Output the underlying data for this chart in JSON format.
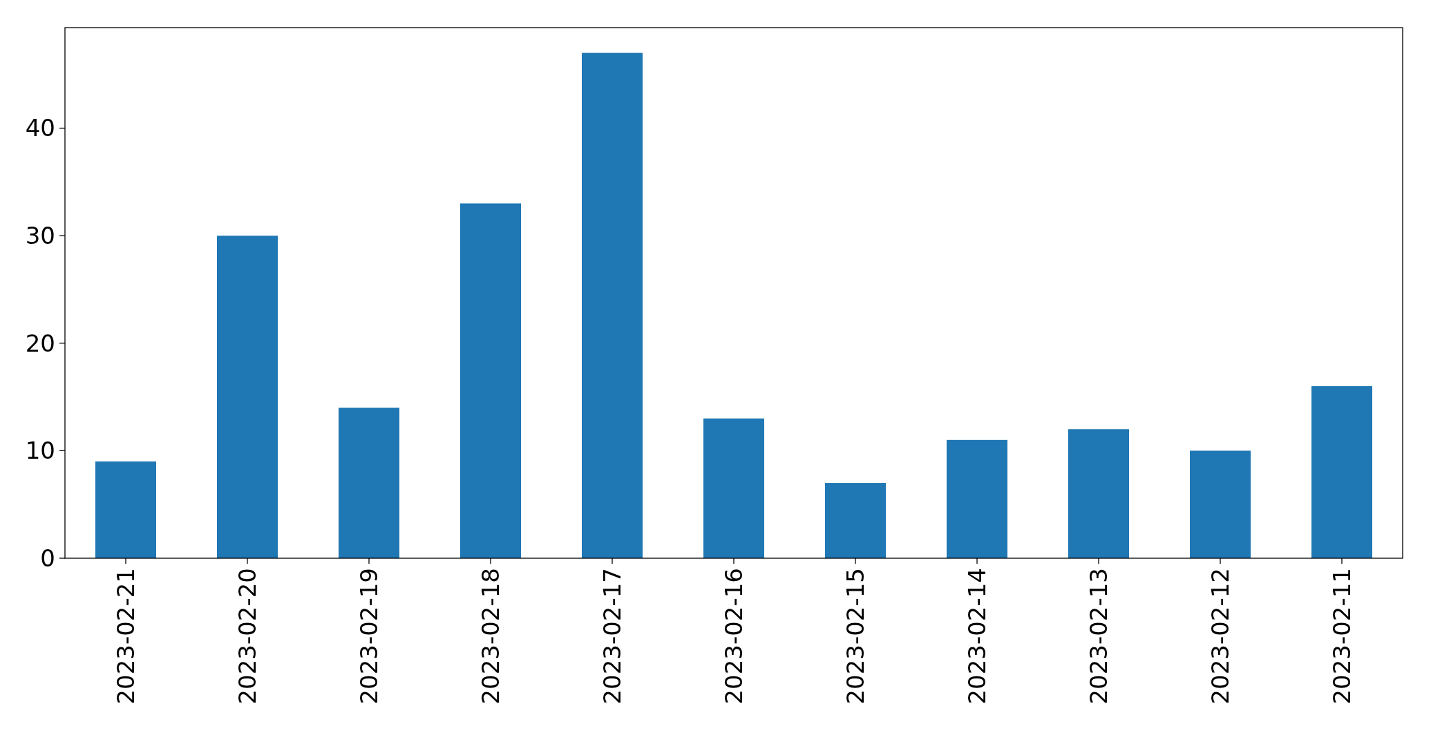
{
  "chart_data": {
    "type": "bar",
    "categories": [
      "2023-02-21",
      "2023-02-20",
      "2023-02-19",
      "2023-02-18",
      "2023-02-17",
      "2023-02-16",
      "2023-02-15",
      "2023-02-14",
      "2023-02-13",
      "2023-02-12",
      "2023-02-11"
    ],
    "values": [
      9,
      30,
      14,
      33,
      47,
      13,
      7,
      11,
      12,
      10,
      16
    ],
    "color": "#1f77b4",
    "ylim": [
      0,
      49.35
    ],
    "yticks": [
      0,
      10,
      20,
      30,
      40
    ],
    "grid": false
  }
}
